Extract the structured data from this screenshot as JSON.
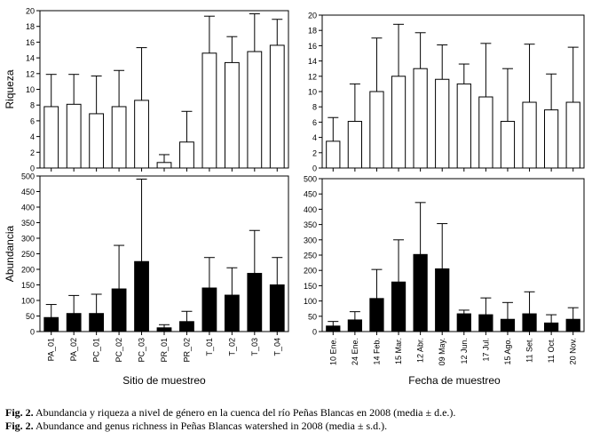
{
  "panels": {
    "left": {
      "xlabel": "Sitio de muestreo",
      "categories": [
        "PA_01",
        "PA_02",
        "PC_01",
        "PC_02",
        "PC_03",
        "PR_01",
        "PR_02",
        "T_01",
        "T_02",
        "T_03",
        "T_04"
      ]
    },
    "right": {
      "xlabel": "Fecha de muestreo",
      "categories": [
        "10 Ene.",
        "24 Ene.",
        "14 Feb.",
        "15 Mar.",
        "12 Abr.",
        "09 May.",
        "12 Jun.",
        "17 Jul.",
        "15 Ago.",
        "11 Set.",
        "11 Oct.",
        "20 Nov."
      ]
    }
  },
  "chart_data": [
    {
      "type": "bar",
      "panel": "top-left",
      "ylabel": "Riqueza",
      "ylim": [
        0,
        20
      ],
      "yticks": [
        0,
        2,
        4,
        6,
        8,
        10,
        12,
        14,
        16,
        18,
        20
      ],
      "bar_fill": "#ffffff",
      "categories": [
        "PA_01",
        "PA_02",
        "PC_01",
        "PC_02",
        "PC_03",
        "PR_01",
        "PR_02",
        "T_01",
        "T_02",
        "T_03",
        "T_04"
      ],
      "values": [
        7.8,
        8.1,
        6.9,
        7.8,
        8.6,
        0.7,
        3.3,
        14.6,
        13.4,
        14.8,
        15.6
      ],
      "errors": [
        4.1,
        3.8,
        4.8,
        4.6,
        6.7,
        1.0,
        3.9,
        4.7,
        3.3,
        4.8,
        3.3
      ]
    },
    {
      "type": "bar",
      "panel": "top-right",
      "ylabel": "",
      "ylim": [
        0,
        20
      ],
      "yticks": [
        0,
        2,
        4,
        6,
        8,
        10,
        12,
        14,
        16,
        18,
        20
      ],
      "bar_fill": "#ffffff",
      "categories": [
        "10 Ene.",
        "24 Ene.",
        "14 Feb.",
        "15 Mar.",
        "12 Abr.",
        "09 May.",
        "12 Jun.",
        "17 Jul.",
        "15 Ago.",
        "11 Set.",
        "11 Oct.",
        "20 Nov."
      ],
      "values": [
        3.5,
        6.1,
        10.0,
        12.0,
        13.0,
        11.6,
        11.0,
        9.3,
        6.1,
        8.6,
        7.6,
        8.6
      ],
      "errors": [
        3.1,
        4.9,
        7.0,
        6.8,
        4.7,
        4.5,
        2.6,
        7.0,
        6.9,
        7.6,
        4.7,
        7.2
      ]
    },
    {
      "type": "bar",
      "panel": "bottom-left",
      "ylabel": "Abundancia",
      "ylim": [
        0,
        500
      ],
      "yticks": [
        0,
        50,
        100,
        150,
        200,
        250,
        300,
        350,
        400,
        450,
        500
      ],
      "bar_fill": "#000000",
      "categories": [
        "PA_01",
        "PA_02",
        "PC_01",
        "PC_02",
        "PC_03",
        "PR_01",
        "PR_02",
        "T_01",
        "T_02",
        "T_03",
        "T_04"
      ],
      "values": [
        45,
        58,
        58,
        137,
        225,
        12,
        32,
        140,
        117,
        187,
        150
      ],
      "errors": [
        42,
        58,
        62,
        140,
        265,
        10,
        33,
        98,
        88,
        138,
        88
      ]
    },
    {
      "type": "bar",
      "panel": "bottom-right",
      "ylabel": "",
      "ylim": [
        0,
        500
      ],
      "yticks": [
        0,
        50,
        100,
        150,
        200,
        250,
        300,
        350,
        400,
        450,
        500
      ],
      "bar_fill": "#000000",
      "categories": [
        "10 Ene.",
        "24 Ene.",
        "14 Feb.",
        "15 Mar.",
        "12 Abr.",
        "09 May.",
        "12 Jun.",
        "17 Jul.",
        "15 Ago.",
        "11 Set.",
        "11 Oct.",
        "20 Nov."
      ],
      "values": [
        18,
        38,
        108,
        162,
        252,
        205,
        58,
        55,
        40,
        58,
        28,
        40
      ],
      "errors": [
        15,
        27,
        95,
        138,
        170,
        148,
        12,
        55,
        55,
        72,
        27,
        38
      ]
    }
  ],
  "captions": {
    "es_label": "Fig. 2.",
    "es_text": " Abundancia y riqueza a nivel de género en la cuenca del río Peñas Blancas en 2008 (media ± d.e.).",
    "en_label": "Fig. 2.",
    "en_text": " Abundance and genus richness in Peñas Blancas watershed in 2008 (media ± s.d.)."
  }
}
